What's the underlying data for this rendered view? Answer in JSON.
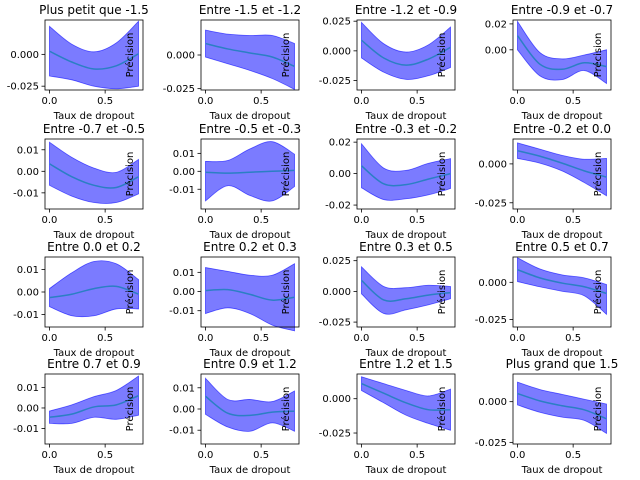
{
  "chart_data": [
    {
      "type": "line",
      "title": "Plus petit que -1.5",
      "xlabel": "Taux de dropout",
      "ylabel": "Précision",
      "xlim": [
        -0.04,
        0.84
      ],
      "ylim": [
        -0.028,
        0.027
      ],
      "xticks": [
        {
          "v": 0,
          "label": "0.0"
        },
        {
          "v": 0.5,
          "label": "0.5"
        }
      ],
      "yticks": [
        {
          "v": 0,
          "label": "0.000"
        },
        {
          "v": -0.025,
          "label": "-0.025"
        }
      ],
      "x": [
        0,
        0.2,
        0.4,
        0.6,
        0.8
      ],
      "mean": [
        0.0025,
        -0.006,
        -0.0115,
        -0.009,
        0.0005
      ],
      "upper": [
        0.022,
        0.008,
        0.002,
        0.009,
        0.026
      ],
      "lower": [
        -0.017,
        -0.02,
        -0.025,
        -0.027,
        -0.025
      ]
    },
    {
      "type": "line",
      "title": "Entre -1.5 et -1.2",
      "xlabel": "Taux de dropout",
      "ylabel": "Précision",
      "xlim": [
        -0.04,
        0.84
      ],
      "ylim": [
        -0.026,
        0.026
      ],
      "xticks": [
        {
          "v": 0,
          "label": "0.0"
        },
        {
          "v": 0.5,
          "label": "0.5"
        }
      ],
      "yticks": [
        {
          "v": 0,
          "label": "0.000"
        },
        {
          "v": -0.025,
          "label": "-0.025"
        }
      ],
      "x": [
        0,
        0.2,
        0.4,
        0.6,
        0.8
      ],
      "mean": [
        0.0085,
        0.0045,
        0.0015,
        -0.0015,
        -0.0085
      ],
      "upper": [
        0.0185,
        0.0155,
        0.0145,
        0.0145,
        0.0085
      ],
      "lower": [
        -0.0015,
        -0.0065,
        -0.0115,
        -0.0175,
        -0.0255
      ]
    },
    {
      "type": "line",
      "title": "Entre -1.2 et -0.9",
      "xlabel": "Taux de dropout",
      "ylabel": "Précision",
      "xlim": [
        -0.04,
        0.84
      ],
      "ylim": [
        -0.033,
        0.026
      ],
      "xticks": [
        {
          "v": 0,
          "label": "0.0"
        },
        {
          "v": 0.5,
          "label": "0.5"
        }
      ],
      "yticks": [
        {
          "v": 0.025,
          "label": "0.025"
        },
        {
          "v": 0,
          "label": "0.000"
        },
        {
          "v": -0.025,
          "label": "-0.025"
        }
      ],
      "x": [
        0,
        0.2,
        0.4,
        0.6,
        0.8
      ],
      "mean": [
        0.009,
        -0.006,
        -0.012,
        -0.007,
        0.003
      ],
      "upper": [
        0.024,
        0.006,
        -0.001,
        0.005,
        0.02
      ],
      "lower": [
        -0.006,
        -0.018,
        -0.024,
        -0.021,
        -0.014
      ]
    },
    {
      "type": "line",
      "title": "Entre -0.9 et -0.7",
      "xlabel": "Taux de dropout",
      "ylabel": "Précision",
      "xlim": [
        -0.04,
        0.84
      ],
      "ylim": [
        -0.031,
        0.023
      ],
      "xticks": [
        {
          "v": 0,
          "label": "0.0"
        },
        {
          "v": 0.5,
          "label": "0.5"
        }
      ],
      "yticks": [
        {
          "v": 0.02,
          "label": "0.02"
        },
        {
          "v": 0,
          "label": "0.00"
        }
      ],
      "x": [
        0,
        0.2,
        0.4,
        0.6,
        0.8
      ],
      "mean": [
        0.011,
        -0.011,
        -0.015,
        -0.01,
        -0.013
      ],
      "upper": [
        0.022,
        -0.002,
        -0.007,
        -0.004,
        0.0
      ],
      "lower": [
        0.0,
        -0.02,
        -0.023,
        -0.016,
        -0.026
      ]
    },
    {
      "type": "line",
      "title": "Entre -0.7 et -0.5",
      "xlabel": "Taux de dropout",
      "ylabel": "Précision",
      "xlim": [
        -0.04,
        0.84
      ],
      "ylim": [
        -0.0175,
        0.015
      ],
      "xticks": [
        {
          "v": 0,
          "label": "0.0"
        },
        {
          "v": 0.5,
          "label": "0.5"
        }
      ],
      "yticks": [
        {
          "v": 0.01,
          "label": "0.01"
        },
        {
          "v": 0,
          "label": "0.00"
        },
        {
          "v": -0.01,
          "label": "-0.01"
        }
      ],
      "x": [
        0,
        0.2,
        0.4,
        0.6,
        0.8
      ],
      "mean": [
        0.0035,
        -0.0025,
        -0.0065,
        -0.0075,
        -0.0025
      ],
      "upper": [
        0.0135,
        0.0065,
        0.0015,
        -0.0005,
        0.0055
      ],
      "lower": [
        -0.0065,
        -0.0115,
        -0.0145,
        -0.0145,
        -0.0105
      ]
    },
    {
      "type": "line",
      "title": "Entre -0.5 et -0.3",
      "xlabel": "Taux de dropout",
      "ylabel": "Précision",
      "xlim": [
        -0.04,
        0.84
      ],
      "ylim": [
        -0.021,
        0.018
      ],
      "xticks": [
        {
          "v": 0,
          "label": "0.0"
        },
        {
          "v": 0.5,
          "label": "0.5"
        }
      ],
      "yticks": [
        {
          "v": 0.01,
          "label": "0.01"
        },
        {
          "v": 0,
          "label": "0.00"
        },
        {
          "v": -0.01,
          "label": "-0.01"
        }
      ],
      "x": [
        0,
        0.2,
        0.4,
        0.6,
        0.8
      ],
      "mean": [
        -0.0005,
        -0.001,
        -0.0005,
        0.0,
        0.0005
      ],
      "upper": [
        0.0055,
        0.006,
        0.0125,
        0.0165,
        0.0095
      ],
      "lower": [
        -0.0165,
        -0.008,
        -0.0135,
        -0.0165,
        -0.0085
      ]
    },
    {
      "type": "line",
      "title": "Entre -0.3 et -0.2",
      "xlabel": "Taux de dropout",
      "ylabel": "Précision",
      "xlim": [
        -0.04,
        0.84
      ],
      "ylim": [
        -0.0225,
        0.022
      ],
      "xticks": [
        {
          "v": 0,
          "label": "0.0"
        },
        {
          "v": 0.5,
          "label": "0.5"
        }
      ],
      "yticks": [
        {
          "v": 0.02,
          "label": "0.02"
        },
        {
          "v": 0,
          "label": "0.00"
        },
        {
          "v": -0.02,
          "label": "-0.02"
        }
      ],
      "x": [
        0,
        0.2,
        0.4,
        0.6,
        0.8
      ],
      "mean": [
        0.005,
        -0.0065,
        -0.007,
        -0.0035,
        0.0
      ],
      "upper": [
        0.019,
        0.0035,
        0.002,
        0.0065,
        0.0095
      ],
      "lower": [
        -0.009,
        -0.0165,
        -0.016,
        -0.0135,
        -0.0095
      ]
    },
    {
      "type": "line",
      "title": "Entre -0.2 et 0.0",
      "xlabel": "Taux de dropout",
      "ylabel": "Précision",
      "xlim": [
        -0.04,
        0.84
      ],
      "ylim": [
        -0.029,
        0.016
      ],
      "xticks": [
        {
          "v": 0,
          "label": "0.0"
        },
        {
          "v": 0.5,
          "label": "0.5"
        }
      ],
      "yticks": [
        {
          "v": 0,
          "label": "0.000"
        },
        {
          "v": -0.025,
          "label": "-0.025"
        }
      ],
      "x": [
        0,
        0.2,
        0.4,
        0.6,
        0.8
      ],
      "mean": [
        0.0085,
        0.005,
        0.0005,
        -0.0045,
        -0.0085
      ],
      "upper": [
        0.0135,
        0.0095,
        0.0055,
        0.003,
        0.0035
      ],
      "lower": [
        0.0035,
        0.0005,
        -0.0045,
        -0.012,
        -0.0205
      ]
    },
    {
      "type": "line",
      "title": "Entre 0.0 et 0.2",
      "xlabel": "Taux de dropout",
      "ylabel": "Précision",
      "xlim": [
        -0.04,
        0.84
      ],
      "ylim": [
        -0.0155,
        0.0155
      ],
      "xticks": [
        {
          "v": 0,
          "label": "0.0"
        },
        {
          "v": 0.5,
          "label": "0.5"
        }
      ],
      "yticks": [
        {
          "v": 0.01,
          "label": "0.01"
        },
        {
          "v": 0,
          "label": "0.00"
        },
        {
          "v": -0.01,
          "label": "-0.01"
        }
      ],
      "x": [
        0,
        0.2,
        0.4,
        0.6,
        0.8
      ],
      "mean": [
        -0.0025,
        -0.001,
        0.0015,
        0.0025,
        -0.001
      ],
      "upper": [
        0.0015,
        0.0085,
        0.0135,
        0.0125,
        0.0055
      ],
      "lower": [
        -0.0065,
        -0.0105,
        -0.0105,
        -0.0075,
        -0.0075
      ]
    },
    {
      "type": "line",
      "title": "Entre 0.2 et 0.3",
      "xlabel": "Taux de dropout",
      "ylabel": "Précision",
      "xlim": [
        -0.04,
        0.84
      ],
      "ylim": [
        -0.0185,
        0.018
      ],
      "xticks": [
        {
          "v": 0,
          "label": "0.0"
        },
        {
          "v": 0.5,
          "label": "0.5"
        }
      ],
      "yticks": [
        {
          "v": 0.01,
          "label": "0.01"
        },
        {
          "v": 0,
          "label": "0.00"
        },
        {
          "v": -0.01,
          "label": "-0.01"
        }
      ],
      "x": [
        0,
        0.2,
        0.4,
        0.6,
        0.8
      ],
      "mean": [
        0.0005,
        0.001,
        -0.0015,
        -0.0045,
        -0.003
      ],
      "upper": [
        0.0125,
        0.0105,
        0.0085,
        0.0085,
        0.0145
      ],
      "lower": [
        -0.0115,
        -0.0085,
        -0.0115,
        -0.0175,
        -0.0205
      ]
    },
    {
      "type": "line",
      "title": "Entre 0.3 et 0.5",
      "xlabel": "Taux de dropout",
      "ylabel": "Précision",
      "xlim": [
        -0.04,
        0.84
      ],
      "ylim": [
        -0.029,
        0.028
      ],
      "xticks": [
        {
          "v": 0,
          "label": "0.0"
        },
        {
          "v": 0.5,
          "label": "0.5"
        }
      ],
      "yticks": [
        {
          "v": 0.025,
          "label": "0.025"
        },
        {
          "v": 0,
          "label": "0.000"
        },
        {
          "v": -0.025,
          "label": "-0.025"
        }
      ],
      "x": [
        0,
        0.2,
        0.4,
        0.6,
        0.8
      ],
      "mean": [
        0.009,
        -0.007,
        -0.006,
        -0.003,
        -0.001
      ],
      "upper": [
        0.02,
        0.004,
        0.003,
        0.005,
        0.004
      ],
      "lower": [
        -0.002,
        -0.018,
        -0.015,
        -0.011,
        -0.006
      ]
    },
    {
      "type": "line",
      "title": "Entre 0.5 et 0.7",
      "xlabel": "Taux de dropout",
      "ylabel": "Précision",
      "xlim": [
        -0.04,
        0.84
      ],
      "ylim": [
        -0.03,
        0.017
      ],
      "xticks": [
        {
          "v": 0,
          "label": "0.0"
        },
        {
          "v": 0.5,
          "label": "0.5"
        }
      ],
      "yticks": [
        {
          "v": 0,
          "label": "0.000"
        },
        {
          "v": -0.025,
          "label": "-0.025"
        }
      ],
      "x": [
        0,
        0.2,
        0.4,
        0.6,
        0.8
      ],
      "mean": [
        0.0085,
        0.003,
        -0.0005,
        -0.003,
        -0.0075
      ],
      "upper": [
        0.0165,
        0.009,
        0.005,
        0.003,
        -0.0015
      ],
      "lower": [
        0.0005,
        -0.003,
        -0.006,
        -0.009,
        -0.0215
      ]
    },
    {
      "type": "line",
      "title": "Entre 0.7 et 0.9",
      "xlabel": "Taux de dropout",
      "ylabel": "Précision",
      "xlim": [
        -0.04,
        0.84
      ],
      "ylim": [
        -0.0175,
        0.0165
      ],
      "xticks": [
        {
          "v": 0,
          "label": "0.0"
        },
        {
          "v": 0.5,
          "label": "0.5"
        }
      ],
      "yticks": [
        {
          "v": 0.01,
          "label": "0.01"
        },
        {
          "v": 0,
          "label": "0.00"
        },
        {
          "v": -0.01,
          "label": "-0.01"
        }
      ],
      "x": [
        0,
        0.2,
        0.4,
        0.6,
        0.8
      ],
      "mean": [
        -0.0045,
        -0.003,
        0.0005,
        0.0015,
        0.006
      ],
      "upper": [
        -0.0015,
        0.0015,
        0.0055,
        0.0085,
        0.0155
      ],
      "lower": [
        -0.0075,
        -0.0075,
        -0.0045,
        -0.0055,
        -0.0035
      ]
    },
    {
      "type": "line",
      "title": "Entre 0.9 et 1.2",
      "xlabel": "Taux de dropout",
      "ylabel": "Précision",
      "xlim": [
        -0.04,
        0.84
      ],
      "ylim": [
        -0.0165,
        0.0165
      ],
      "xticks": [
        {
          "v": 0,
          "label": "0.0"
        },
        {
          "v": 0.5,
          "label": "0.5"
        }
      ],
      "yticks": [
        {
          "v": 0.01,
          "label": "0.01"
        },
        {
          "v": 0,
          "label": "0.00"
        },
        {
          "v": -0.01,
          "label": "-0.01"
        }
      ],
      "x": [
        0,
        0.2,
        0.4,
        0.6,
        0.8
      ],
      "mean": [
        0.006,
        -0.002,
        -0.003,
        -0.0015,
        -0.001
      ],
      "upper": [
        0.0145,
        0.0045,
        0.0045,
        0.0035,
        0.0085
      ],
      "lower": [
        -0.0025,
        -0.0085,
        -0.0105,
        -0.0065,
        -0.0105
      ]
    },
    {
      "type": "line",
      "title": "Entre 1.2 et 1.5",
      "xlabel": "Taux de dropout",
      "ylabel": "Précision",
      "xlim": [
        -0.04,
        0.84
      ],
      "ylim": [
        -0.033,
        0.018
      ],
      "xticks": [
        {
          "v": 0,
          "label": "0.0"
        },
        {
          "v": 0.5,
          "label": "0.5"
        }
      ],
      "yticks": [
        {
          "v": 0,
          "label": "0.000"
        },
        {
          "v": -0.025,
          "label": "-0.025"
        }
      ],
      "x": [
        0,
        0.2,
        0.4,
        0.6,
        0.8
      ],
      "mean": [
        0.011,
        0.004,
        -0.003,
        -0.008,
        -0.008
      ],
      "upper": [
        0.016,
        0.011,
        0.006,
        0.002,
        0.007
      ],
      "lower": [
        0.006,
        -0.003,
        -0.012,
        -0.018,
        -0.023
      ]
    },
    {
      "type": "line",
      "title": "Plus grand que 1.5",
      "xlabel": "Taux de dropout",
      "ylabel": "Précision",
      "xlim": [
        -0.04,
        0.84
      ],
      "ylim": [
        -0.026,
        0.017
      ],
      "xticks": [
        {
          "v": 0,
          "label": "0.0"
        },
        {
          "v": 0.5,
          "label": "0.5"
        }
      ],
      "yticks": [
        {
          "v": 0,
          "label": "0.000"
        },
        {
          "v": -0.025,
          "label": "-0.025"
        }
      ],
      "x": [
        0,
        0.2,
        0.4,
        0.6,
        0.8
      ],
      "mean": [
        0.005,
        0.0005,
        -0.0025,
        -0.005,
        -0.0105
      ],
      "upper": [
        0.012,
        0.0075,
        0.0045,
        0.0015,
        -0.0015
      ],
      "lower": [
        -0.002,
        -0.0065,
        -0.0095,
        -0.0115,
        -0.0195
      ]
    }
  ],
  "colors": {
    "band_fill": "#7b7bff",
    "band_edge": "#0000ff",
    "line": "#2b7fc4",
    "axes": "#000000",
    "background": "#ffffff"
  }
}
